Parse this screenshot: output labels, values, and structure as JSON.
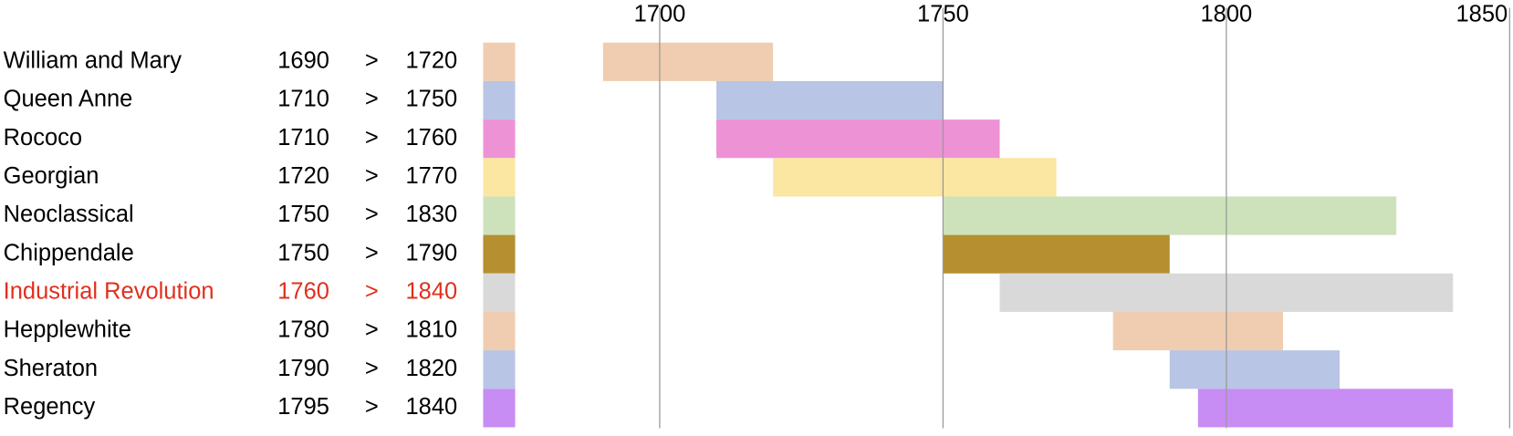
{
  "chart_data": {
    "type": "gantt",
    "categories": [
      "William and Mary",
      "Queen Anne",
      "Rococo",
      "Georgian",
      "Neoclassical",
      "Chippendale",
      "Industrial Revolution",
      "Hepplewhite",
      "Sheraton",
      "Regency"
    ],
    "start": [
      1690,
      1710,
      1710,
      1720,
      1750,
      1750,
      1760,
      1780,
      1790,
      1795
    ],
    "end": [
      1720,
      1750,
      1760,
      1770,
      1830,
      1790,
      1840,
      1810,
      1820,
      1840
    ],
    "separator": ">",
    "colors": [
      "#f0cdb0",
      "#b8c5e4",
      "#ee92d6",
      "#fbe6a2",
      "#cde2bb",
      "#b58f30",
      "#d9d9d9",
      "#f0cdb0",
      "#b8c5e4",
      "#c88cf5"
    ],
    "label_colors": [
      "#000000",
      "#000000",
      "#000000",
      "#000000",
      "#000000",
      "#000000",
      "#e0301e",
      "#000000",
      "#000000",
      "#000000"
    ],
    "xlim": [
      1675,
      1850
    ],
    "xticks": [
      1700,
      1750,
      1800,
      1850
    ],
    "grid": true
  }
}
